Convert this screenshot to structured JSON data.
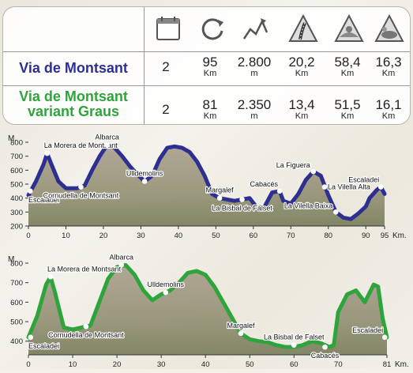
{
  "colors": {
    "blue": "#2d2f91",
    "green": "#2fa43c"
  },
  "table": {
    "icons": [
      "stages-icon",
      "loop-icon",
      "elevation-gain-icon",
      "asphalt-road-icon",
      "dirt-track-icon",
      "trail-icon"
    ],
    "rows": [
      {
        "name_lines": [
          "Via de Montsant"
        ],
        "color": "#2d2f91",
        "cells": [
          {
            "v": "2",
            "u": ""
          },
          {
            "v": "95",
            "u": "Km"
          },
          {
            "v": "2.800",
            "u": "m"
          },
          {
            "v": "20,2",
            "u": "Km"
          },
          {
            "v": "58,4",
            "u": "Km"
          },
          {
            "v": "16,3",
            "u": "Km"
          }
        ]
      },
      {
        "name_lines": [
          "Via de Montsant",
          "variant Graus"
        ],
        "color": "#2fa43c",
        "cells": [
          {
            "v": "2",
            "u": ""
          },
          {
            "v": "81",
            "u": "Km"
          },
          {
            "v": "2.350",
            "u": "m"
          },
          {
            "v": "13,4",
            "u": "Km"
          },
          {
            "v": "51,5",
            "u": "Km"
          },
          {
            "v": "16,1",
            "u": "Km"
          }
        ]
      }
    ]
  },
  "chart_data": [
    {
      "type": "area",
      "ylabel": "M.",
      "xlabel": "Km.",
      "xlim": [
        0,
        95
      ],
      "ylim": [
        200,
        800
      ],
      "xticks": [
        0,
        10,
        20,
        30,
        40,
        50,
        60,
        70,
        80,
        90,
        95
      ],
      "yticks": [
        200,
        300,
        400,
        500,
        600,
        700,
        800
      ],
      "color": "#2d2f91",
      "profile": [
        [
          0,
          420
        ],
        [
          2,
          520
        ],
        [
          4,
          640
        ],
        [
          5,
          720
        ],
        [
          6,
          650
        ],
        [
          8,
          520
        ],
        [
          10,
          470
        ],
        [
          13,
          470
        ],
        [
          15,
          490
        ],
        [
          17,
          600
        ],
        [
          19,
          700
        ],
        [
          21,
          780
        ],
        [
          23,
          760
        ],
        [
          25,
          700
        ],
        [
          27,
          630
        ],
        [
          29,
          570
        ],
        [
          31,
          520
        ],
        [
          33,
          560
        ],
        [
          35,
          680
        ],
        [
          37,
          760
        ],
        [
          39,
          770
        ],
        [
          41,
          760
        ],
        [
          43,
          730
        ],
        [
          45,
          660
        ],
        [
          47,
          560
        ],
        [
          49,
          430
        ],
        [
          51,
          400
        ],
        [
          53,
          390
        ],
        [
          55,
          380
        ],
        [
          57,
          390
        ],
        [
          59,
          400
        ],
        [
          61,
          330
        ],
        [
          63,
          340
        ],
        [
          65,
          440
        ],
        [
          67,
          450
        ],
        [
          68,
          380
        ],
        [
          70,
          360
        ],
        [
          72,
          430
        ],
        [
          74,
          530
        ],
        [
          76,
          590
        ],
        [
          78,
          560
        ],
        [
          80,
          420
        ],
        [
          82,
          300
        ],
        [
          84,
          260
        ],
        [
          86,
          250
        ],
        [
          88,
          290
        ],
        [
          90,
          340
        ],
        [
          91,
          400
        ],
        [
          93,
          460
        ],
        [
          94,
          480
        ],
        [
          95,
          430
        ]
      ],
      "waypoints": [
        {
          "km": 0.5,
          "m": 450,
          "label": "Escaladei",
          "pos": "below"
        },
        {
          "km": 5,
          "m": 720,
          "label": "La Morera de Montsant",
          "pos": "above"
        },
        {
          "km": 14,
          "m": 480,
          "label": "Cornudella de Montsant",
          "pos": "below"
        },
        {
          "km": 21,
          "m": 780,
          "label": "Albarca",
          "pos": "above"
        },
        {
          "km": 31,
          "m": 520,
          "label": "Ulldemolins",
          "pos": "above"
        },
        {
          "km": 51,
          "m": 400,
          "label": "Margalef",
          "pos": "above"
        },
        {
          "km": 57,
          "m": 390,
          "label": "La Bisbal de Falset",
          "pos": "below"
        },
        {
          "km": 67,
          "m": 450,
          "label": "Cabacés",
          "pos": "left-above"
        },
        {
          "km": 76,
          "m": 590,
          "label": "La Figuera",
          "pos": "left"
        },
        {
          "km": 79,
          "m": 480,
          "label": "La Vilella Alta",
          "pos": "right"
        },
        {
          "km": 82,
          "m": 300,
          "label": "La Vilella Baixa",
          "pos": "left"
        },
        {
          "km": 94,
          "m": 480,
          "label": "Escaladei",
          "pos": "left-above"
        }
      ]
    },
    {
      "type": "area",
      "ylabel": "M.",
      "xlabel": "Km.",
      "xlim": [
        0,
        81
      ],
      "ylim": [
        330,
        800
      ],
      "xticks": [
        0,
        10,
        20,
        30,
        40,
        50,
        60,
        70,
        81
      ],
      "yticks": [
        400,
        500,
        600,
        700,
        800
      ],
      "color": "#2fa43c",
      "profile": [
        [
          0,
          420
        ],
        [
          2,
          530
        ],
        [
          4,
          690
        ],
        [
          5,
          730
        ],
        [
          6,
          650
        ],
        [
          8,
          470
        ],
        [
          10,
          460
        ],
        [
          12,
          470
        ],
        [
          14,
          480
        ],
        [
          16,
          600
        ],
        [
          18,
          720
        ],
        [
          20,
          780
        ],
        [
          22,
          790
        ],
        [
          24,
          740
        ],
        [
          26,
          660
        ],
        [
          28,
          610
        ],
        [
          30,
          640
        ],
        [
          32,
          660
        ],
        [
          34,
          700
        ],
        [
          36,
          750
        ],
        [
          38,
          760
        ],
        [
          40,
          740
        ],
        [
          42,
          680
        ],
        [
          44,
          600
        ],
        [
          46,
          520
        ],
        [
          48,
          440
        ],
        [
          50,
          410
        ],
        [
          52,
          400
        ],
        [
          54,
          395
        ],
        [
          56,
          380
        ],
        [
          58,
          370
        ],
        [
          60,
          370
        ],
        [
          62,
          380
        ],
        [
          64,
          400
        ],
        [
          66,
          390
        ],
        [
          68,
          370
        ],
        [
          69,
          380
        ],
        [
          70,
          550
        ],
        [
          72,
          640
        ],
        [
          74,
          660
        ],
        [
          76,
          600
        ],
        [
          78,
          690
        ],
        [
          79,
          680
        ],
        [
          80,
          520
        ],
        [
          81,
          420
        ]
      ],
      "waypoints": [
        {
          "km": 0.5,
          "m": 420,
          "label": "Escaladei",
          "pos": "below"
        },
        {
          "km": 5,
          "m": 730,
          "label": "La Morera de Montsant",
          "pos": "above"
        },
        {
          "km": 13,
          "m": 475,
          "label": "Cornudella de Montsant",
          "pos": "below"
        },
        {
          "km": 21,
          "m": 790,
          "label": "Albarca",
          "pos": "above"
        },
        {
          "km": 31,
          "m": 650,
          "label": "Ulldemolins",
          "pos": "above"
        },
        {
          "km": 48,
          "m": 440,
          "label": "Margalef",
          "pos": "above"
        },
        {
          "km": 60,
          "m": 380,
          "label": "La Bisbal de Falset",
          "pos": "above"
        },
        {
          "km": 67,
          "m": 370,
          "label": "Cabacés",
          "pos": "below"
        },
        {
          "km": 80.5,
          "m": 420,
          "label": "Escaladei",
          "pos": "left-above"
        }
      ]
    }
  ]
}
